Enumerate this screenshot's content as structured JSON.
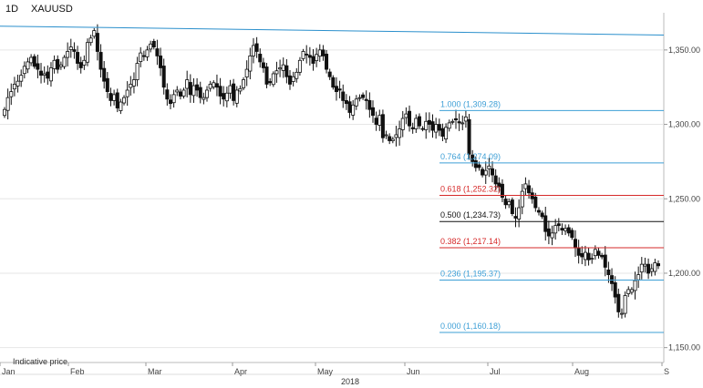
{
  "header": {
    "interval": "1D",
    "symbol": "XAUUSD"
  },
  "footer": {
    "note": "Indicative price",
    "year": "2018"
  },
  "colors": {
    "candle": "#111111",
    "grid": "#e6e6e6",
    "trendline": "#2a8fcc",
    "fib_blue": "#3d9fd6",
    "fib_red": "#d62a2a",
    "fib_black": "#111111"
  },
  "chart_data": {
    "type": "candlestick",
    "title": "XAUUSD",
    "interval": "1D",
    "ylim": [
      1140,
      1375
    ],
    "y_ticks": [
      "1,150.00",
      "1,200.00",
      "1,250.00",
      "1,300.00",
      "1,350.00"
    ],
    "y_tick_values": [
      1150,
      1200,
      1250,
      1300,
      1350
    ],
    "x_ticks": [
      "Jan",
      "Feb",
      "Mar",
      "Apr",
      "May",
      "Jun",
      "Jul",
      "Aug",
      "S"
    ],
    "x_axis_year": "2018",
    "trendline": {
      "from": {
        "date": "2018-01-01",
        "price": 1366
      },
      "to": {
        "date": "2018-08-31",
        "price": 1360
      }
    },
    "fibonacci": [
      {
        "ratio": "1.000",
        "price": 1309.28,
        "label": "1.000 (1,309.28)",
        "color": "blue"
      },
      {
        "ratio": "0.764",
        "price": 1274.09,
        "label": "0.764 (1,274.09)",
        "color": "blue"
      },
      {
        "ratio": "0.618",
        "price": 1252.32,
        "label": "0.618 (1,252.32)",
        "color": "red"
      },
      {
        "ratio": "0.500",
        "price": 1234.73,
        "label": "0.500 (1,234.73)",
        "color": "black"
      },
      {
        "ratio": "0.382",
        "price": 1217.14,
        "label": "0.382 (1,217.14)",
        "color": "red"
      },
      {
        "ratio": "0.236",
        "price": 1195.37,
        "label": "0.236 (1,195.37)",
        "color": "blue"
      },
      {
        "ratio": "0.000",
        "price": 1160.18,
        "label": "0.000 (1,160.18)",
        "color": "blue"
      }
    ],
    "closes": [
      1310,
      1318,
      1322,
      1327,
      1329,
      1333,
      1339,
      1342,
      1345,
      1339,
      1337,
      1333,
      1334,
      1331,
      1338,
      1343,
      1337,
      1340,
      1345,
      1349,
      1352,
      1349,
      1341,
      1338,
      1343,
      1355,
      1358,
      1363,
      1349,
      1337,
      1329,
      1322,
      1316,
      1320,
      1311,
      1315,
      1318,
      1323,
      1327,
      1330,
      1341,
      1348,
      1346,
      1350,
      1354,
      1352,
      1346,
      1338,
      1325,
      1317,
      1314,
      1320,
      1323,
      1319,
      1323,
      1330,
      1320,
      1326,
      1323,
      1318,
      1318,
      1323,
      1327,
      1328,
      1325,
      1319,
      1317,
      1321,
      1326,
      1316,
      1323,
      1324,
      1330,
      1337,
      1346,
      1353,
      1349,
      1342,
      1338,
      1327,
      1328,
      1334,
      1336,
      1338,
      1340,
      1332,
      1327,
      1332,
      1335,
      1343,
      1349,
      1347,
      1345,
      1341,
      1347,
      1350,
      1346,
      1337,
      1332,
      1325,
      1322,
      1323,
      1316,
      1314,
      1308,
      1313,
      1317,
      1318,
      1318,
      1316,
      1310,
      1306,
      1300,
      1306,
      1291,
      1293,
      1289,
      1290,
      1293,
      1297,
      1304,
      1307,
      1299,
      1297,
      1304,
      1299,
      1297,
      1302,
      1300,
      1296,
      1300,
      1296,
      1292,
      1298,
      1301,
      1302,
      1303,
      1301,
      1301,
      1305,
      1280,
      1275,
      1271,
      1271,
      1266,
      1269,
      1272,
      1266,
      1260,
      1258,
      1251,
      1246,
      1248,
      1240,
      1237,
      1244,
      1255,
      1260,
      1254,
      1250,
      1244,
      1241,
      1238,
      1228,
      1225,
      1227,
      1232,
      1232,
      1229,
      1230,
      1227,
      1224,
      1217,
      1212,
      1211,
      1214,
      1209,
      1210,
      1216,
      1212,
      1211,
      1204,
      1199,
      1193,
      1184,
      1174,
      1173,
      1185,
      1189,
      1189,
      1195,
      1199,
      1206,
      1206,
      1200,
      1203,
      1207,
      1205
    ]
  }
}
